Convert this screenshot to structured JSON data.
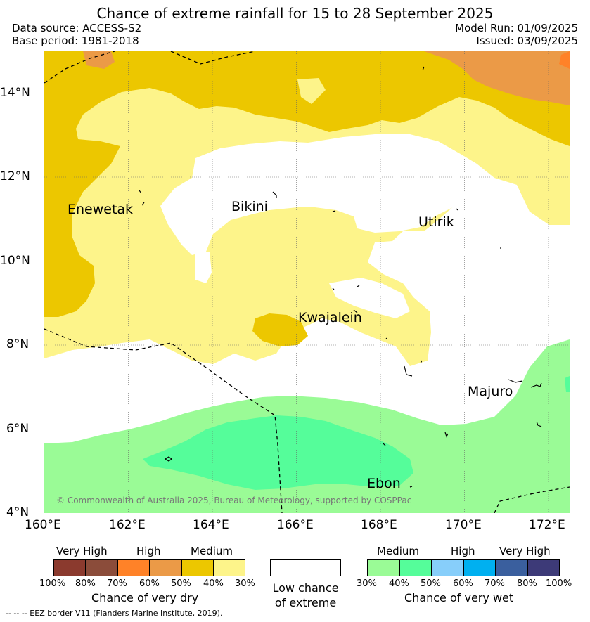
{
  "title": "Chance of extreme rainfall for 15 to 28 September 2025",
  "header": {
    "data_source": "Data source: ACCESS-S2",
    "base_period": "Base period: 1981-2018",
    "model_run": "Model Run: 01/09/2025",
    "issued": "Issued: 03/09/2025"
  },
  "map": {
    "lon_range": [
      160,
      172.5
    ],
    "lat_range": [
      4,
      15
    ],
    "y_ticks": [
      "4°N",
      "6°N",
      "8°N",
      "10°N",
      "12°N",
      "14°N"
    ],
    "x_ticks": [
      "160°E",
      "162°E",
      "164°E",
      "166°E",
      "168°E",
      "170°E",
      "172°E"
    ],
    "places": [
      "Enewetak",
      "Bikini",
      "Utirik",
      "Kwajalein",
      "Majuro",
      "Ebon"
    ],
    "copyright": "© Commonwealth of Australia 2025, Bureau of Meteorology, supported by COSPPac",
    "colors": {
      "dry_medium_light": "#fdf48a",
      "dry_medium": "#ecc700",
      "dry_high": "#eb9a47",
      "dry_high_strong": "#ff8228",
      "wet_medium": "#9afb96",
      "wet_medium_strong": "#55fd9a"
    }
  },
  "legend": {
    "dry": {
      "labels": [
        "Very High",
        "High",
        "Medium"
      ],
      "percents": [
        "100%",
        "80%",
        "70%",
        "60%",
        "50%",
        "40%",
        "30%"
      ],
      "caption": "Chance of very dry",
      "colors": [
        "#8b3a2e",
        "#8b4c3a",
        "#ff8228",
        "#eb9a47",
        "#ecc700",
        "#fdf48a"
      ]
    },
    "neutral": {
      "caption_line1": "Low chance",
      "caption_line2": "of extreme"
    },
    "wet": {
      "labels": [
        "Medium",
        "High",
        "Very High"
      ],
      "percents": [
        "30%",
        "40%",
        "50%",
        "60%",
        "70%",
        "80%",
        "100%"
      ],
      "caption": "Chance of very wet",
      "colors": [
        "#9afb96",
        "#55fd9a",
        "#87cefa",
        "#00b0f0",
        "#3a5f9e",
        "#3d3a78"
      ]
    }
  },
  "footnote": "-- -- -- EEZ border V11 (Flanders Marine Institute, 2019)."
}
